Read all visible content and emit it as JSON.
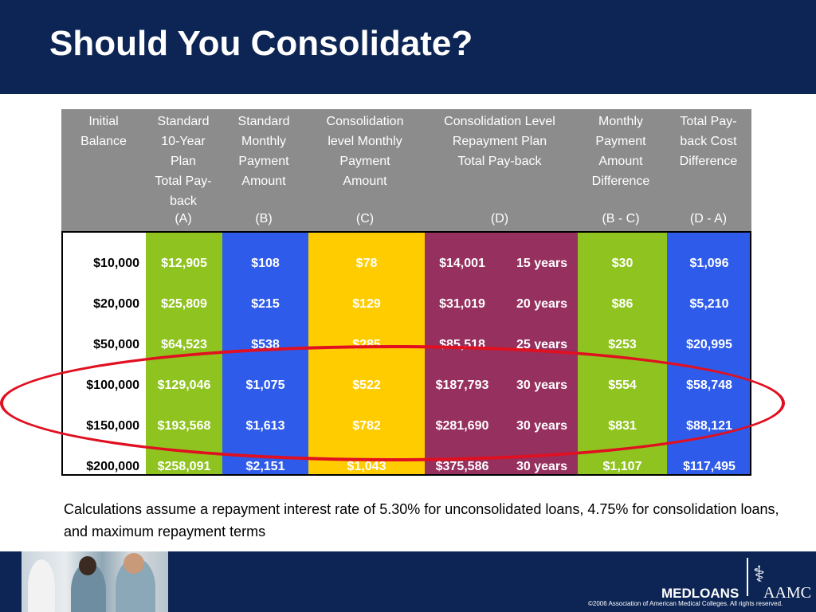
{
  "title": "Should You Consolidate?",
  "colors": {
    "title_bg": "#0d2554",
    "header_bg": "#8c8c8c",
    "green": "#8fc31f",
    "blue": "#2f5bea",
    "yellow": "#ffcc00",
    "maroon": "#96305f",
    "oval": "#e01020"
  },
  "table": {
    "headers": [
      {
        "lines": "Initial\nBalance",
        "letter": ""
      },
      {
        "lines": "Standard\n10-Year\nPlan\nTotal Pay-\nback",
        "letter": "(A)"
      },
      {
        "lines": "Standard\nMonthly\nPayment\nAmount",
        "letter": "(B)"
      },
      {
        "lines": "Consolidation\nlevel Monthly\nPayment\nAmount",
        "letter": "(C)"
      },
      {
        "lines": "Consolidation Level\nRepayment Plan\nTotal Pay-back",
        "letter": "(D)"
      },
      {
        "lines": "Monthly\nPayment\nAmount\nDifference",
        "letter": "(B - C)"
      },
      {
        "lines": "Total Pay-\nback Cost\nDifference",
        "letter": "(D - A)"
      }
    ],
    "rows": [
      {
        "balance": "$10,000",
        "a": "$12,905",
        "b": "$108",
        "c": "$78",
        "d": "$14,001",
        "term": "15 years",
        "bc": "$30",
        "da": "$1,096"
      },
      {
        "balance": "$20,000",
        "a": "$25,809",
        "b": "$215",
        "c": "$129",
        "d": "$31,019",
        "term": "20 years",
        "bc": "$86",
        "da": "$5,210"
      },
      {
        "balance": "$50,000",
        "a": "$64,523",
        "b": "$538",
        "c": "$285",
        "d": "$85,518",
        "term": "25 years",
        "bc": "$253",
        "da": "$20,995"
      },
      {
        "balance": "$100,000",
        "a": "$129,046",
        "b": "$1,075",
        "c": "$522",
        "d": "$187,793",
        "term": "30 years",
        "bc": "$554",
        "da": "$58,748"
      },
      {
        "balance": "$150,000",
        "a": "$193,568",
        "b": "$1,613",
        "c": "$782",
        "d": "$281,690",
        "term": "30 years",
        "bc": "$831",
        "da": "$88,121"
      },
      {
        "balance": "$200,000",
        "a": "$258,091",
        "b": "$2,151",
        "c": "$1,043",
        "d": "$375,586",
        "term": "30 years",
        "bc": "$1,107",
        "da": "$117,495"
      }
    ]
  },
  "note": "Calculations assume a repayment interest rate of 5.30% for unconsolidated loans, 4.75% for consolidation loans, and maximum repayment terms",
  "footer": {
    "brand": "MEDLOANS",
    "org": "AAMC",
    "copyright": "©2006 Association of American Medical Colleges. All rights reserved."
  }
}
